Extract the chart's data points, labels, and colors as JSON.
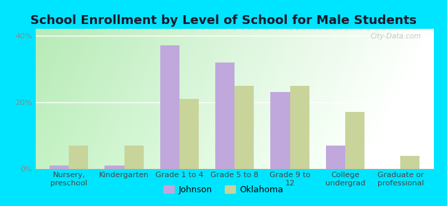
{
  "title": "School Enrollment by Level of School for Male Students",
  "categories": [
    "Nursery,\npreschool",
    "Kindergarten",
    "Grade 1 to 4",
    "Grade 5 to 8",
    "Grade 9 to\n12",
    "College\nundergrad",
    "Graduate or\nprofessional"
  ],
  "johnson": [
    1.0,
    1.0,
    37.0,
    32.0,
    23.0,
    7.0,
    0.0
  ],
  "oklahoma": [
    7.0,
    7.0,
    21.0,
    25.0,
    25.0,
    17.0,
    4.0
  ],
  "johnson_color": "#c0a8dc",
  "oklahoma_color": "#c8d49a",
  "background_color": "#00e5ff",
  "plot_bg_left": "#b8e8c0",
  "plot_bg_right": "#f8fff8",
  "ylim": [
    0,
    42
  ],
  "yticks": [
    0,
    20,
    40
  ],
  "ytick_labels": [
    "0%",
    "20%",
    "40%"
  ],
  "legend_johnson": "Johnson",
  "legend_oklahoma": "Oklahoma",
  "watermark": "City-Data.com",
  "title_fontsize": 13,
  "tick_fontsize": 8,
  "legend_fontsize": 9
}
